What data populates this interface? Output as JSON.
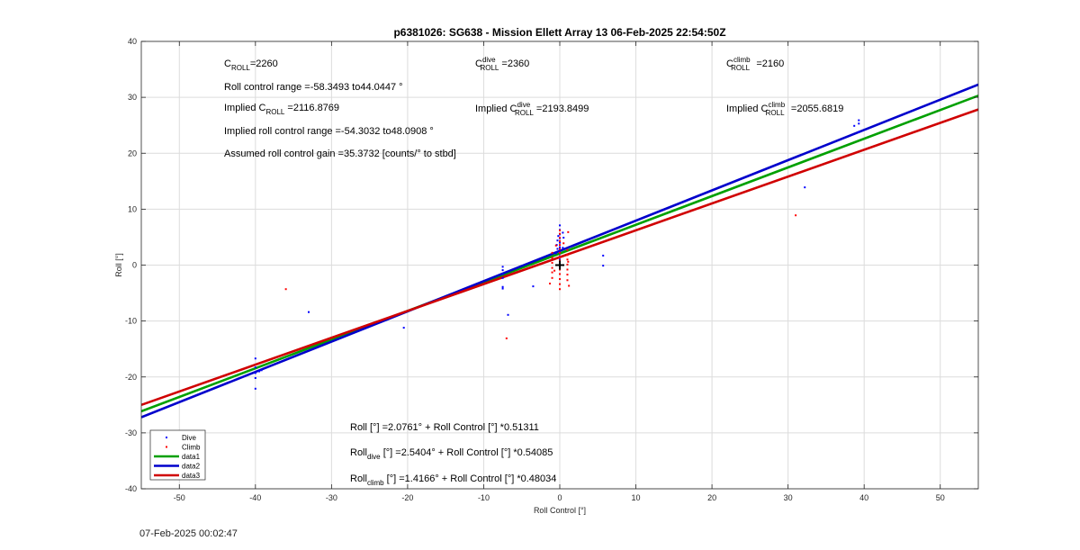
{
  "chart_data": {
    "type": "scatter",
    "title": "p6381026: SG638 - Mission Ellett Array 13 06-Feb-2025 22:54:50Z",
    "xlabel": "Roll Control [°]",
    "ylabel": "Roll [°]",
    "xlim": [
      -55,
      55
    ],
    "ylim": [
      -40,
      40
    ],
    "xticks": [
      -50,
      -40,
      -30,
      -20,
      -10,
      0,
      10,
      20,
      30,
      40,
      50
    ],
    "yticks": [
      -40,
      -30,
      -20,
      -10,
      0,
      10,
      20,
      30,
      40
    ],
    "grid": true,
    "legend_position": "bottom-left",
    "series": [
      {
        "name": "Dive",
        "kind": "points",
        "color": "#0000ff",
        "points": [
          [
            -40,
            -16.7
          ],
          [
            -40,
            -18.3
          ],
          [
            -40,
            -19.3
          ],
          [
            -40,
            -20.2
          ],
          [
            -40,
            -22.1
          ],
          [
            -39.5,
            -19.0
          ],
          [
            -39.2,
            -18.8
          ],
          [
            -33,
            -8.4
          ],
          [
            -7.5,
            -0.3
          ],
          [
            -7.5,
            -0.9
          ],
          [
            -7.5,
            -1.6
          ],
          [
            -7.5,
            -2.3
          ],
          [
            -7.5,
            -3.9
          ],
          [
            -7.5,
            -4.2
          ],
          [
            -6.8,
            -8.9
          ],
          [
            -3.5,
            -3.8
          ],
          [
            0,
            7.1
          ],
          [
            0,
            6.3
          ],
          [
            0,
            5.5
          ],
          [
            0,
            4.8
          ],
          [
            0,
            4.0
          ],
          [
            0,
            3.2
          ],
          [
            0,
            2.7
          ],
          [
            0,
            2.2
          ],
          [
            0,
            1.6
          ],
          [
            0,
            1.0
          ],
          [
            0,
            0.4
          ],
          [
            -0.2,
            5.2
          ],
          [
            -0.3,
            4.4
          ],
          [
            -0.4,
            3.6
          ],
          [
            -0.3,
            2.9
          ],
          [
            -0.5,
            2.1
          ],
          [
            0.4,
            5.8
          ],
          [
            0.5,
            4.9
          ],
          [
            0.4,
            3.1
          ],
          [
            5.7,
            1.7
          ],
          [
            5.7,
            -0.1
          ],
          [
            -20.5,
            -11.2
          ],
          [
            32.2,
            13.9
          ],
          [
            38.7,
            24.9
          ],
          [
            39.3,
            25.9
          ],
          [
            39.3,
            25.3
          ],
          [
            39.3,
            23.8
          ]
        ]
      },
      {
        "name": "Climb",
        "kind": "points",
        "color": "#ff0000",
        "points": [
          [
            -36,
            -4.3
          ],
          [
            -7,
            -13.1
          ],
          [
            31,
            8.9
          ],
          [
            0,
            6.2
          ],
          [
            0,
            5.6
          ],
          [
            0,
            4.9
          ],
          [
            0,
            4.3
          ],
          [
            0,
            3.6
          ],
          [
            0,
            2.9
          ],
          [
            0,
            2.2
          ],
          [
            0,
            1.5
          ],
          [
            0,
            0.8
          ],
          [
            0,
            -0.1
          ],
          [
            0,
            -0.8
          ],
          [
            0,
            -1.6
          ],
          [
            0,
            -2.5
          ],
          [
            0,
            -3.4
          ],
          [
            0,
            -4.3
          ],
          [
            -1,
            2.2
          ],
          [
            -1,
            1.3
          ],
          [
            -1,
            0.4
          ],
          [
            -1,
            -0.5
          ],
          [
            -1,
            -1.3
          ],
          [
            -1,
            -2.3
          ],
          [
            1,
            2.7
          ],
          [
            1,
            1.8
          ],
          [
            1,
            1.0
          ],
          [
            1,
            0.1
          ],
          [
            1,
            -0.8
          ],
          [
            1,
            -1.7
          ],
          [
            -0.5,
            3.5
          ],
          [
            0.5,
            3.9
          ],
          [
            1,
            -2.7
          ],
          [
            1.2,
            -3.7
          ],
          [
            -1.3,
            -3.3
          ],
          [
            1.1,
            0.6
          ],
          [
            1.1,
            5.9
          ],
          [
            -0.7,
            -1.0
          ]
        ]
      },
      {
        "name": "data1",
        "kind": "line",
        "color": "#00a000",
        "intercept": 2.0761,
        "slope": 0.51311
      },
      {
        "name": "data2",
        "kind": "line",
        "color": "#0000cc",
        "intercept": 2.5404,
        "slope": 0.54085
      },
      {
        "name": "data3",
        "kind": "line",
        "color": "#d00000",
        "intercept": 1.4166,
        "slope": 0.48034
      }
    ],
    "marker": {
      "x": 0,
      "y": 0
    },
    "annotations": [
      {
        "id": "c_roll",
        "base": "C",
        "sub": "ROLL",
        "rest": "=2260"
      },
      {
        "id": "c_roll_dive",
        "base": "C",
        "sup": "dive",
        "sub": "ROLL",
        "rest": " =2360"
      },
      {
        "id": "c_roll_climb",
        "base": "C",
        "sup": "climb",
        "sub": "ROLL",
        "rest": " =2160"
      },
      {
        "id": "roll_range",
        "text": "Roll control range =-58.3493 to44.0447 °"
      },
      {
        "id": "implied_c_roll",
        "base": "Implied C",
        "sub": "ROLL",
        "rest": " =2116.8769"
      },
      {
        "id": "implied_c_roll_dive",
        "base": "Implied C",
        "sup": "dive",
        "sub": "ROLL",
        "rest": " =2193.8499"
      },
      {
        "id": "implied_c_roll_climb",
        "base": "Implied C",
        "sup": "climb",
        "sub": "ROLL",
        "rest": " =2055.6819"
      },
      {
        "id": "implied_range",
        "text": "Implied roll control range =-54.3032 to48.0908 °"
      },
      {
        "id": "gain",
        "text": "Assumed roll control gain =35.3732 [counts/° to stbd]"
      },
      {
        "id": "fit_all",
        "text": "Roll [°] =2.0761° + Roll Control [°] *0.51311"
      },
      {
        "id": "fit_dive",
        "base": "Roll",
        "sub": "dive",
        "rest": " [°] =2.5404° + Roll Control [°] *0.54085"
      },
      {
        "id": "fit_climb",
        "base": "Roll",
        "sub": "climb",
        "rest": " [°] =1.4166° + Roll Control [°] *0.48034"
      }
    ]
  },
  "footer": {
    "timestamp": "07-Feb-2025 00:02:47"
  }
}
